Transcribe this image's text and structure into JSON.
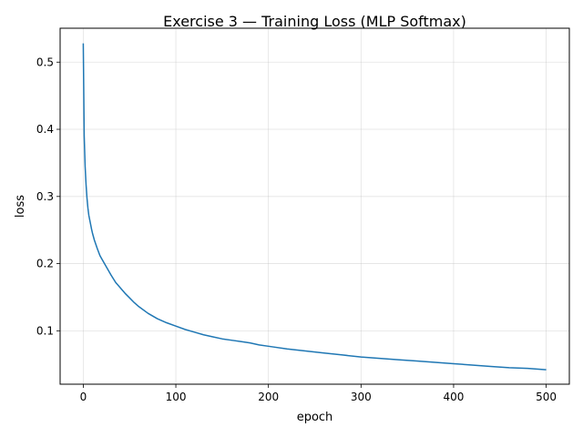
{
  "chart_data": {
    "type": "line",
    "title": "Exercise 3 — Training Loss (MLP Softmax)",
    "xlabel": "epoch",
    "ylabel": "loss",
    "xlim": [
      -25,
      525
    ],
    "ylim": [
      0.0205,
      0.5505
    ],
    "xticks": [
      0,
      100,
      200,
      300,
      400,
      500
    ],
    "yticks": [
      0.1,
      0.2,
      0.3,
      0.4,
      0.5
    ],
    "grid": true,
    "series": [
      {
        "color": "#1f77b4",
        "x": [
          0,
          1,
          2,
          3,
          4,
          5,
          6,
          7,
          8,
          9,
          10,
          12,
          15,
          18,
          20,
          25,
          30,
          35,
          40,
          45,
          50,
          55,
          60,
          70,
          80,
          90,
          100,
          110,
          120,
          130,
          140,
          150,
          160,
          170,
          180,
          190,
          200,
          220,
          240,
          260,
          280,
          300,
          320,
          340,
          360,
          380,
          400,
          420,
          440,
          460,
          480,
          500
        ],
        "y": [
          0.528,
          0.39,
          0.345,
          0.318,
          0.298,
          0.283,
          0.272,
          0.265,
          0.258,
          0.251,
          0.245,
          0.235,
          0.223,
          0.212,
          0.207,
          0.195,
          0.183,
          0.172,
          0.164,
          0.156,
          0.149,
          0.142,
          0.136,
          0.126,
          0.118,
          0.112,
          0.107,
          0.102,
          0.098,
          0.094,
          0.091,
          0.088,
          0.086,
          0.084,
          0.082,
          0.079,
          0.077,
          0.073,
          0.07,
          0.067,
          0.064,
          0.061,
          0.059,
          0.057,
          0.055,
          0.053,
          0.051,
          0.049,
          0.047,
          0.045,
          0.044,
          0.042
        ]
      }
    ]
  }
}
